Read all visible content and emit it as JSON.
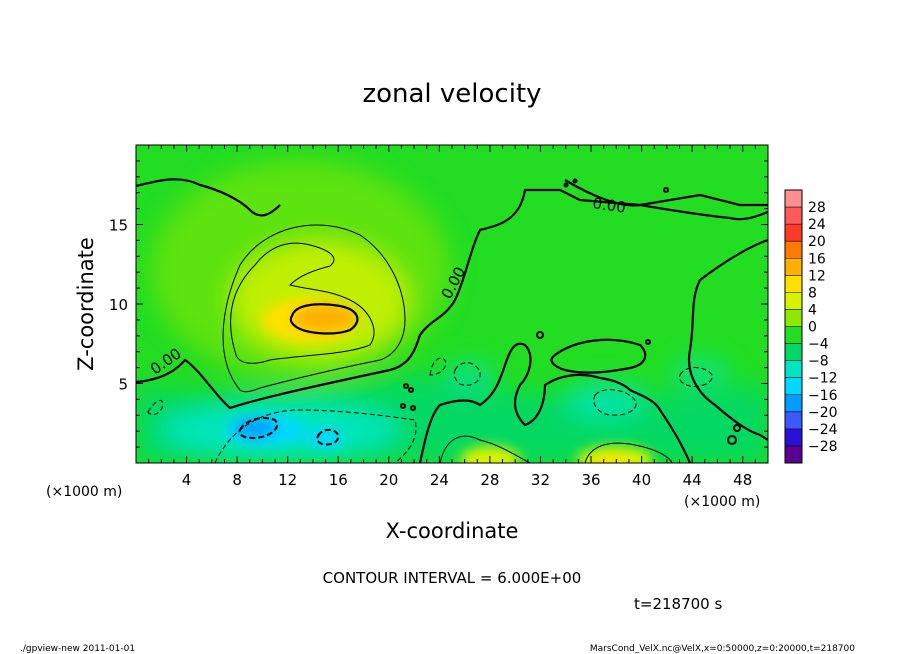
{
  "chart_data": {
    "type": "heatmap",
    "title": "zonal velocity",
    "xlabel": "X-coordinate",
    "ylabel": "Z-coordinate",
    "x_unit_label": "(×1000 m)",
    "x_unit_label_right": "(×1000 m)",
    "xlim": [
      0,
      50
    ],
    "ylim": [
      0,
      20
    ],
    "x_ticks": [
      4,
      8,
      12,
      16,
      20,
      24,
      28,
      32,
      36,
      40,
      44,
      48
    ],
    "y_ticks": [
      5,
      10,
      15
    ],
    "colorbar": {
      "labels": [
        "28",
        "24",
        "20",
        "16",
        "12",
        "8",
        "4",
        "0",
        "−4",
        "−8",
        "−12",
        "−16",
        "−20",
        "−24",
        "−28"
      ],
      "colors": [
        "#ff8f8f",
        "#ff5a5a",
        "#ff3a28",
        "#ff7a00",
        "#ffb000",
        "#ffe000",
        "#d9f200",
        "#8ee800",
        "#22dd22",
        "#00d86a",
        "#00e6c0",
        "#00d8ff",
        "#009cff",
        "#3a5aff",
        "#2a10d8",
        "#5a0090"
      ]
    },
    "zero_contour_label": "0.00",
    "contour_interval_text": "CONTOUR INTERVAL = 6.000E+00",
    "time_text": "t=218700 s",
    "features": [
      {
        "type": "max",
        "x": 15,
        "z": 9.2,
        "value": 16
      },
      {
        "type": "min",
        "x": 9.5,
        "z": 2.3,
        "value": -14
      },
      {
        "type": "min",
        "x": 15.5,
        "z": 1.7,
        "value": -12
      },
      {
        "type": "max",
        "x": 28,
        "z": 0.5,
        "value": 10
      },
      {
        "type": "max",
        "x": 38.5,
        "z": 0.5,
        "value": 10
      }
    ]
  },
  "footer": {
    "left": "./gpview-new  2011-01-01",
    "right": "MarsCond_VelX.nc@VelX,x=0:50000,z=0:20000,t=218700"
  }
}
